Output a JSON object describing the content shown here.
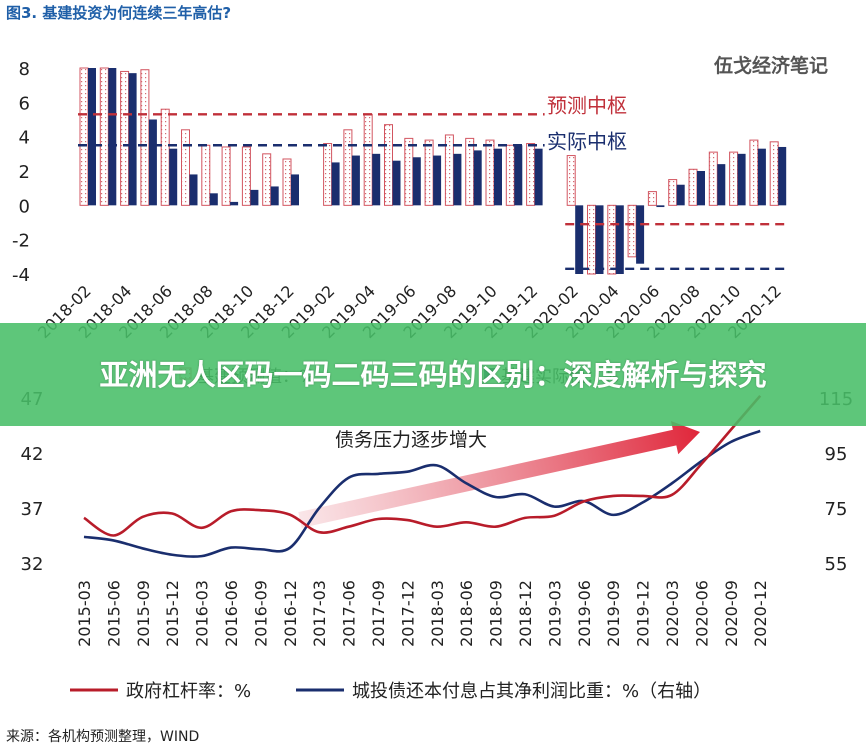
{
  "figure_title": "图3. 基建投资为何连续三年高估?",
  "watermark": "伍戈经济笔记",
  "banner_title": "亚洲无人区码一码二码三码的区别：深度解析与探究",
  "source": "来源：各机构预测整理，WIND",
  "colors": {
    "predicted": "#c0303a",
    "actual": "#1a2e6e",
    "leverage": "#b81c2a",
    "ratio": "#1a2e6e",
    "banner": "#48be68",
    "title": "#1f5fa8"
  },
  "chart_data": [
    {
      "type": "bar",
      "title": "",
      "xlabel": "",
      "ylabel": "",
      "ylim": [
        -4,
        8
      ],
      "yticks": [
        8,
        6,
        4,
        2,
        0,
        -2,
        -4
      ],
      "categories": [
        "2018-02",
        "2018-03",
        "2018-04",
        "2018-05",
        "2018-06",
        "2018-07",
        "2018-08",
        "2018-09",
        "2018-10",
        "2018-11",
        "2018-12",
        "2019-01",
        "2019-02",
        "2019-03",
        "2019-04",
        "2019-05",
        "2019-06",
        "2019-07",
        "2019-08",
        "2019-09",
        "2019-10",
        "2019-11",
        "2019-12",
        "2020-01",
        "2020-02",
        "2020-03",
        "2020-04",
        "2020-05",
        "2020-06",
        "2020-07",
        "2020-08",
        "2020-09",
        "2020-10",
        "2020-11",
        "2020-12"
      ],
      "tick_labels": [
        "2018-02",
        "2018-04",
        "2018-06",
        "2018-08",
        "2018-10",
        "2018-12",
        "2019-02",
        "2019-04",
        "2019-06",
        "2019-08",
        "2019-10",
        "2019-12",
        "2020-02",
        "2020-04",
        "2020-06",
        "2020-08",
        "2020-10",
        "2020-12"
      ],
      "series": [
        {
          "name": "基建预测值：%",
          "values": [
            8.0,
            8.0,
            7.8,
            7.9,
            5.6,
            4.4,
            3.5,
            3.4,
            3.4,
            3.0,
            2.7,
            null,
            3.6,
            4.4,
            5.3,
            4.7,
            3.9,
            3.8,
            4.1,
            3.9,
            3.8,
            3.5,
            3.6,
            null,
            2.9,
            -4.0,
            -4.0,
            -3.0,
            0.8,
            1.5,
            2.1,
            3.1,
            3.1,
            3.8,
            3.7
          ]
        },
        {
          "name": "基建实际值：%",
          "values": [
            8.0,
            8.0,
            7.7,
            5.0,
            3.3,
            1.8,
            0.7,
            0.2,
            0.9,
            1.1,
            1.8,
            null,
            2.5,
            2.9,
            3.0,
            2.6,
            2.8,
            2.9,
            3.0,
            3.2,
            3.3,
            3.5,
            3.3,
            null,
            -4.0,
            -4.0,
            -4.0,
            -3.4,
            -0.1,
            1.2,
            2.0,
            2.4,
            3.0,
            3.3,
            3.4
          ]
        }
      ],
      "reference_lines": [
        {
          "label": "预测中枢",
          "segments": [
            {
              "from": "2018-02",
              "to": "2019-12",
              "y": 5.3
            },
            {
              "from": "2020-02",
              "to": "2020-12",
              "y": -1.1
            }
          ]
        },
        {
          "label": "实际中枢",
          "segments": [
            {
              "from": "2018-02",
              "to": "2019-12",
              "y": 3.5
            },
            {
              "from": "2020-02",
              "to": "2020-12",
              "y": -3.7
            }
          ]
        }
      ],
      "legend": "bottom"
    },
    {
      "type": "line",
      "title": "",
      "annotation": "债务压力逐步增大",
      "xlabel": "",
      "ylabel": "",
      "x": [
        "2015-03",
        "2015-06",
        "2015-09",
        "2015-12",
        "2016-03",
        "2016-06",
        "2016-09",
        "2016-12",
        "2017-03",
        "2017-06",
        "2017-09",
        "2017-12",
        "2018-03",
        "2018-06",
        "2018-09",
        "2018-12",
        "2019-03",
        "2019-06",
        "2019-09",
        "2019-12",
        "2020-03",
        "2020-06",
        "2020-09",
        "2020-12"
      ],
      "ylim_left": [
        32,
        47
      ],
      "yticks_left": [
        47,
        42,
        37,
        32
      ],
      "ylim_right": [
        55,
        115
      ],
      "yticks_right": [
        115,
        95,
        75,
        55
      ],
      "series": [
        {
          "name": "政府杠杆率：%",
          "axis": "left",
          "values": [
            36.1,
            34.5,
            36.2,
            36.5,
            35.2,
            36.7,
            36.8,
            36.4,
            34.8,
            35.3,
            36.0,
            35.9,
            35.3,
            35.7,
            35.3,
            36.1,
            36.3,
            37.6,
            38.1,
            38.1,
            38.2,
            41.0,
            44.1,
            47.2
          ]
        },
        {
          "name": "城投债还本付息占其净利润比重：%（右轴）",
          "axis": "right",
          "values": [
            64.5,
            63.2,
            60.3,
            58.0,
            57.5,
            60.6,
            60.0,
            60.5,
            75.0,
            86.0,
            87.4,
            88.2,
            90.5,
            84.0,
            79.0,
            80.0,
            75.5,
            77.5,
            72.5,
            77.0,
            84.0,
            92.0,
            99.0,
            103.0
          ]
        }
      ],
      "legend": "bottom"
    }
  ]
}
